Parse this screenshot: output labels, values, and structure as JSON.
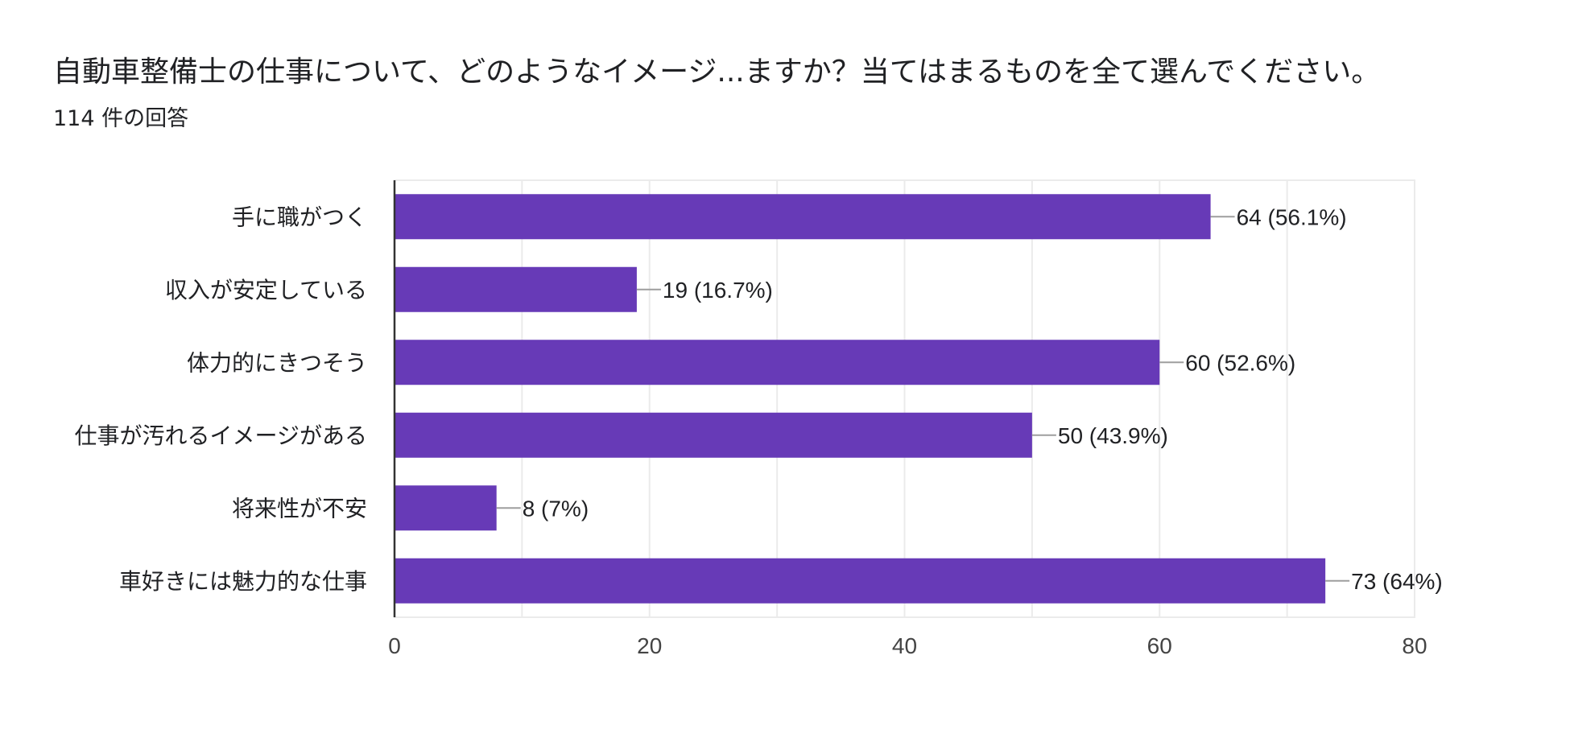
{
  "question": {
    "title": "自動車整備士の仕事について、どのようなイメージ...ますか？当てはまるものを全て選んでください。",
    "response_count": "114 件の回答"
  },
  "colors": {
    "bar": "#673ab7",
    "grid": "#ebebeb",
    "axis": "#333333",
    "connector": "#9e9e9e",
    "text": "#202124",
    "tick_text": "#444444"
  },
  "chart_data": {
    "type": "bar",
    "orientation": "horizontal",
    "title": "",
    "xlabel": "",
    "ylabel": "",
    "xlim": [
      0,
      80
    ],
    "x_ticks": [
      0,
      20,
      40,
      60,
      80
    ],
    "grid": true,
    "categories": [
      "手に職がつく",
      "収入が安定している",
      "体力的にきつそう",
      "仕事が汚れるイメージがある",
      "将来性が不安",
      "車好きには魅力的な仕事"
    ],
    "values": [
      64,
      19,
      60,
      50,
      8,
      73
    ],
    "data_labels": [
      "64 (56.1%)",
      "19 (16.7%)",
      "60 (52.6%)",
      "50 (43.9%)",
      "8 (7%)",
      "73 (64%)"
    ]
  }
}
